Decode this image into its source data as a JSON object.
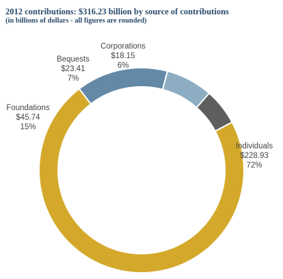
{
  "title": "2012 contributions:  $316.23 billion by source of contributions",
  "subtitle": "(in billions of dollars - all figures are rounded)",
  "chart_data": {
    "type": "pie",
    "style": "donut",
    "title": "2012 contributions:  $316.23 billion by source of contributions",
    "subtitle": "(in billions of dollars - all figures are rounded)",
    "slices": [
      {
        "name": "Individuals",
        "value": 228.93,
        "value_label": "$228.93",
        "pct_label": "72%",
        "color": "#d4a92b"
      },
      {
        "name": "Foundations",
        "value": 45.74,
        "value_label": "$45.74",
        "pct_label": "15%",
        "color": "#6389a7"
      },
      {
        "name": "Bequests",
        "value": 23.41,
        "value_label": "$23.41",
        "pct_label": "7%",
        "color": "#8daec2"
      },
      {
        "name": "Corporations",
        "value": 18.15,
        "value_label": "$18.15",
        "pct_label": "6%",
        "color": "#5e5e5e"
      }
    ]
  }
}
